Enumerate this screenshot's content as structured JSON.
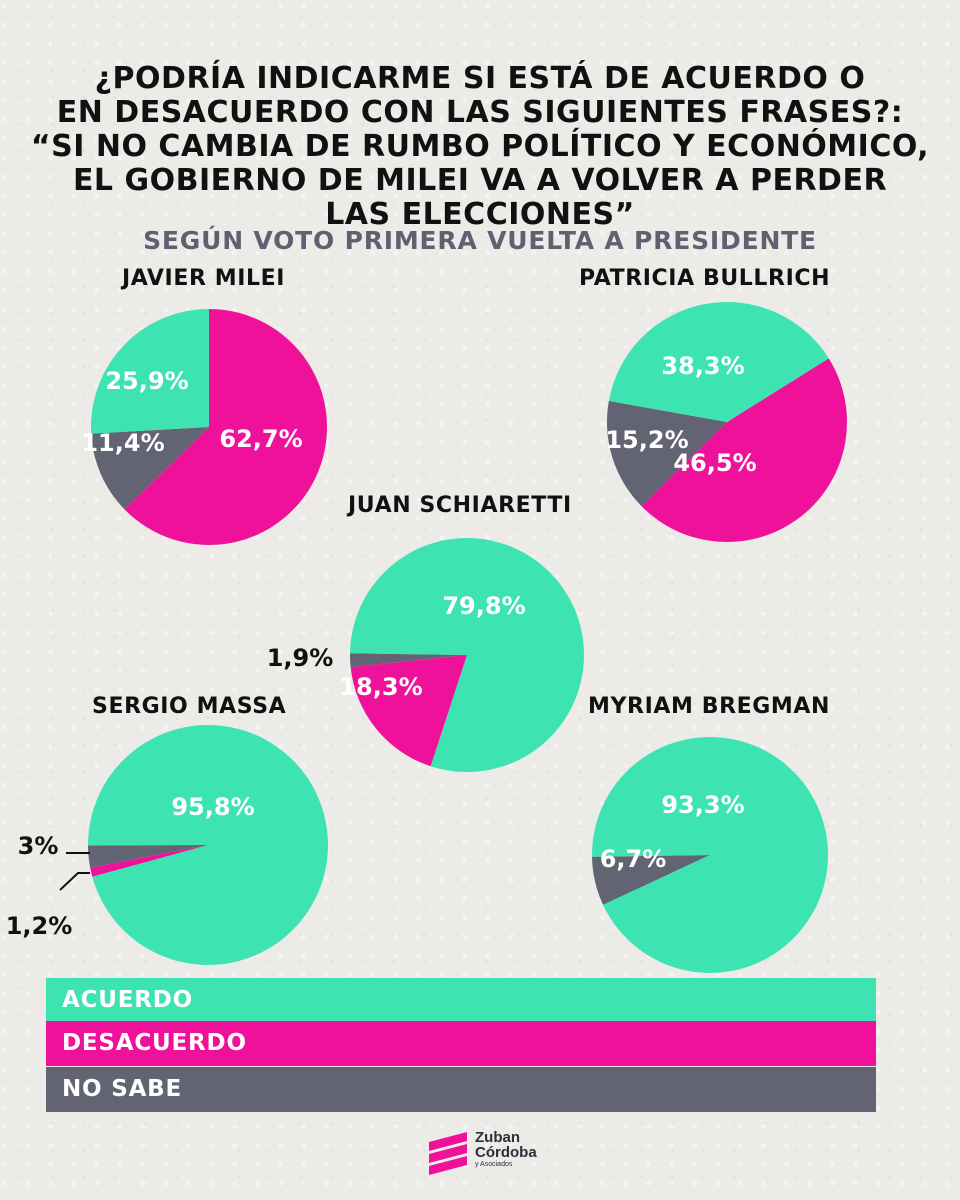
{
  "title_lines": [
    "¿PODRÍA INDICARME SI ESTÁ DE ACUERDO O",
    "EN DESACUERDO CON LAS SIGUIENTES FRASES?:",
    "“SI NO CAMBIA DE RUMBO POLÍTICO Y ECONÓMICO,",
    "EL GOBIERNO DE MILEI VA A VOLVER A PERDER",
    "LAS ELECCIONES”"
  ],
  "subtitle": "SEGÚN VOTO PRIMERA VUELTA A PRESIDENTE",
  "colors": {
    "acuerdo": "#3ee3b2",
    "desacuerdo": "#f0119a",
    "no_sabe": "#636473"
  },
  "legend": [
    {
      "label": "ACUERDO",
      "color": "#3ee3b2"
    },
    {
      "label": "DESACUERDO",
      "color": "#f0119a"
    },
    {
      "label": "NO SABE",
      "color": "#636473"
    }
  ],
  "chart_data": [
    {
      "type": "pie",
      "title": "JAVIER MILEI",
      "slices": [
        {
          "category": "ACUERDO",
          "value": 25.9,
          "label": "25,9%"
        },
        {
          "category": "DESACUERDO",
          "value": 62.7,
          "label": "62,7%"
        },
        {
          "category": "NO SABE",
          "value": 11.4,
          "label": "11,4%"
        }
      ]
    },
    {
      "type": "pie",
      "title": "PATRICIA BULLRICH",
      "slices": [
        {
          "category": "ACUERDO",
          "value": 38.3,
          "label": "38,3%"
        },
        {
          "category": "DESACUERDO",
          "value": 46.5,
          "label": "46,5%"
        },
        {
          "category": "NO SABE",
          "value": 15.2,
          "label": "15,2%"
        }
      ]
    },
    {
      "type": "pie",
      "title": "JUAN SCHIARETTI",
      "slices": [
        {
          "category": "ACUERDO",
          "value": 79.8,
          "label": "79,8%"
        },
        {
          "category": "DESACUERDO",
          "value": 18.3,
          "label": "18,3%"
        },
        {
          "category": "NO SABE",
          "value": 1.9,
          "label": "1,9%"
        }
      ]
    },
    {
      "type": "pie",
      "title": "SERGIO MASSA",
      "slices": [
        {
          "category": "ACUERDO",
          "value": 95.8,
          "label": "95,8%"
        },
        {
          "category": "DESACUERDO",
          "value": 1.2,
          "label": "1,2%"
        },
        {
          "category": "NO SABE",
          "value": 3,
          "label": "3%"
        }
      ]
    },
    {
      "type": "pie",
      "title": "MYRIAM BREGMAN",
      "slices": [
        {
          "category": "ACUERDO",
          "value": 93.3,
          "label": "93,3%"
        },
        {
          "category": "NO SABE",
          "value": 6.7,
          "label": "6,7%"
        }
      ]
    }
  ],
  "logo": {
    "line1": "Zuban",
    "line2": "Córdoba",
    "line3": "y Asociados"
  }
}
